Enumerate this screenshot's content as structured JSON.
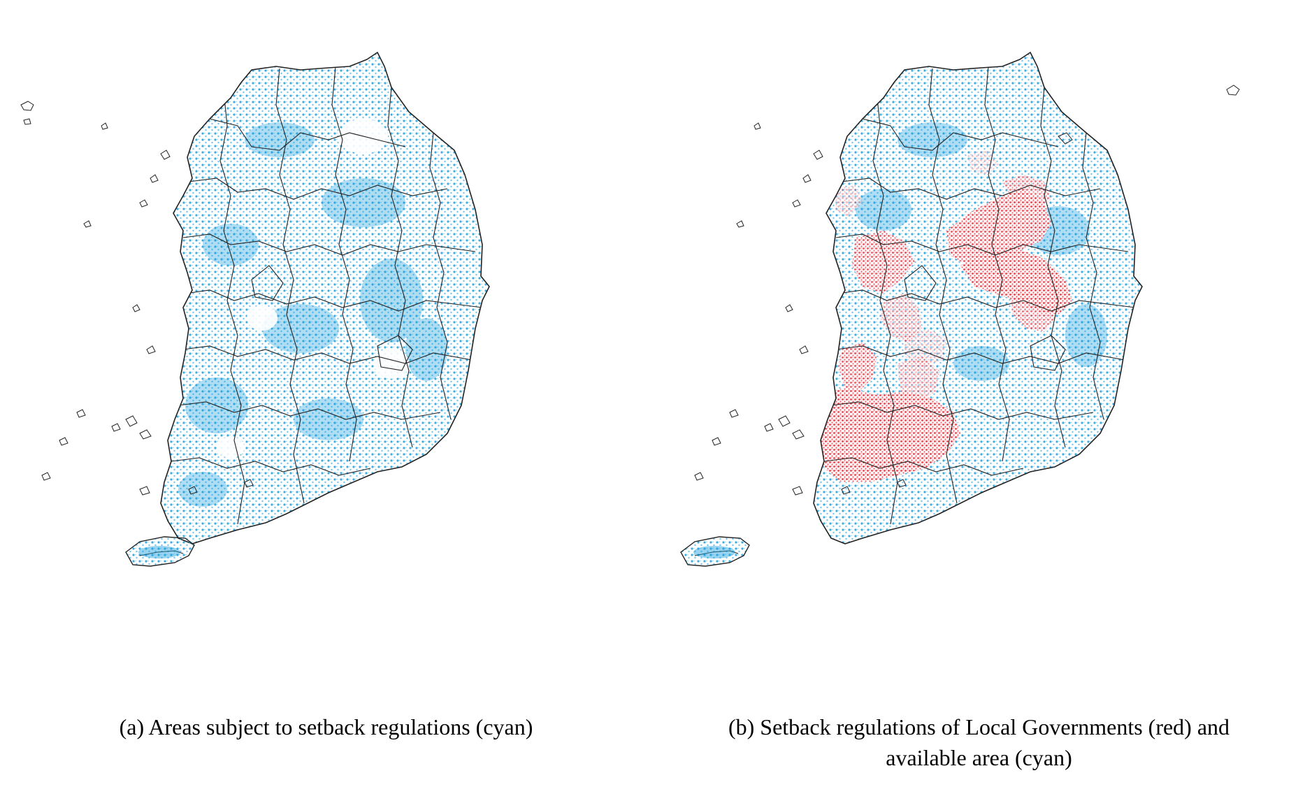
{
  "panels": [
    {
      "caption": "(a) Areas subject to setback regulations (cyan)",
      "layers": [
        "cyan"
      ]
    },
    {
      "caption_line1": "(b) Setback regulations of Local Governments (red) and",
      "caption_line2": "available area (cyan)",
      "layers": [
        "cyan",
        "red"
      ]
    }
  ],
  "colors": {
    "cyan": "#1a9fdc",
    "red": "#e0202a",
    "boundary": "#222222",
    "background": "#ffffff"
  },
  "map": {
    "country": "South Korea",
    "islands": [
      "Jeju"
    ]
  }
}
